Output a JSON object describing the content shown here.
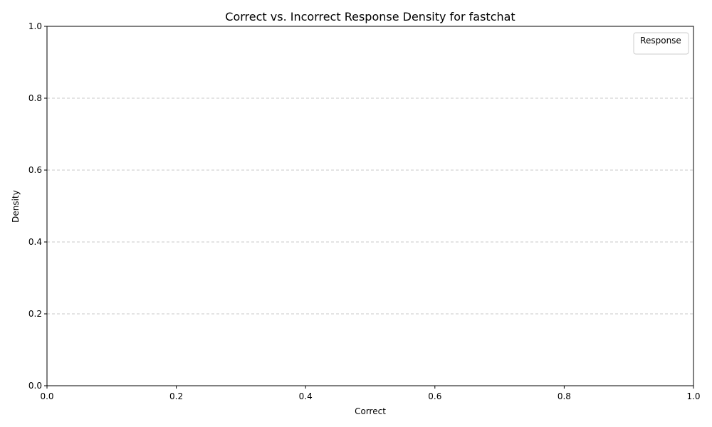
{
  "chart_data": {
    "type": "area",
    "title": "Correct vs. Incorrect Response Density for fastchat",
    "xlabel": "Correct",
    "ylabel": "Density",
    "xlim": [
      0.0,
      1.0
    ],
    "ylim": [
      0.0,
      1.0
    ],
    "xticks": [
      "0.0",
      "0.2",
      "0.4",
      "0.6",
      "0.8",
      "1.0"
    ],
    "yticks": [
      "0.0",
      "0.2",
      "0.4",
      "0.6",
      "0.8",
      "1.0"
    ],
    "grid": "y-dashed",
    "legend": {
      "title": "Response",
      "placement": "top-right",
      "entries": []
    },
    "series": []
  }
}
